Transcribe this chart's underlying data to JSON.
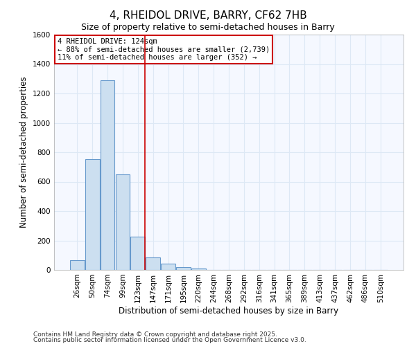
{
  "title": "4, RHEIDOL DRIVE, BARRY, CF62 7HB",
  "subtitle": "Size of property relative to semi-detached houses in Barry",
  "xlabel": "Distribution of semi-detached houses by size in Barry",
  "ylabel": "Number of semi-detached properties",
  "categories": [
    "26sqm",
    "50sqm",
    "74sqm",
    "99sqm",
    "123sqm",
    "147sqm",
    "171sqm",
    "195sqm",
    "220sqm",
    "244sqm",
    "268sqm",
    "292sqm",
    "316sqm",
    "341sqm",
    "365sqm",
    "389sqm",
    "413sqm",
    "437sqm",
    "462sqm",
    "486sqm",
    "510sqm"
  ],
  "values": [
    65,
    755,
    1290,
    650,
    228,
    85,
    43,
    18,
    8,
    0,
    0,
    0,
    0,
    0,
    0,
    0,
    0,
    0,
    0,
    0,
    0
  ],
  "bar_color": "#ccdff0",
  "bar_edge_color": "#6699cc",
  "highlight_bar_index": 4,
  "highlight_line_color": "#cc0000",
  "ylim": [
    0,
    1600
  ],
  "yticks": [
    0,
    200,
    400,
    600,
    800,
    1000,
    1200,
    1400,
    1600
  ],
  "annotation_line1": "4 RHEIDOL DRIVE: 124sqm",
  "annotation_line2": "← 88% of semi-detached houses are smaller (2,739)",
  "annotation_line3": "11% of semi-detached houses are larger (352) →",
  "annotation_box_color": "#ffffff",
  "annotation_border_color": "#cc0000",
  "footnote1": "Contains HM Land Registry data © Crown copyright and database right 2025.",
  "footnote2": "Contains public sector information licensed under the Open Government Licence v3.0.",
  "background_color": "#ffffff",
  "plot_background_color": "#f5f8ff",
  "grid_color": "#dde8f5",
  "title_fontsize": 11,
  "subtitle_fontsize": 9,
  "label_fontsize": 8.5,
  "tick_fontsize": 7.5,
  "annotation_fontsize": 7.5,
  "footnote_fontsize": 6.5
}
